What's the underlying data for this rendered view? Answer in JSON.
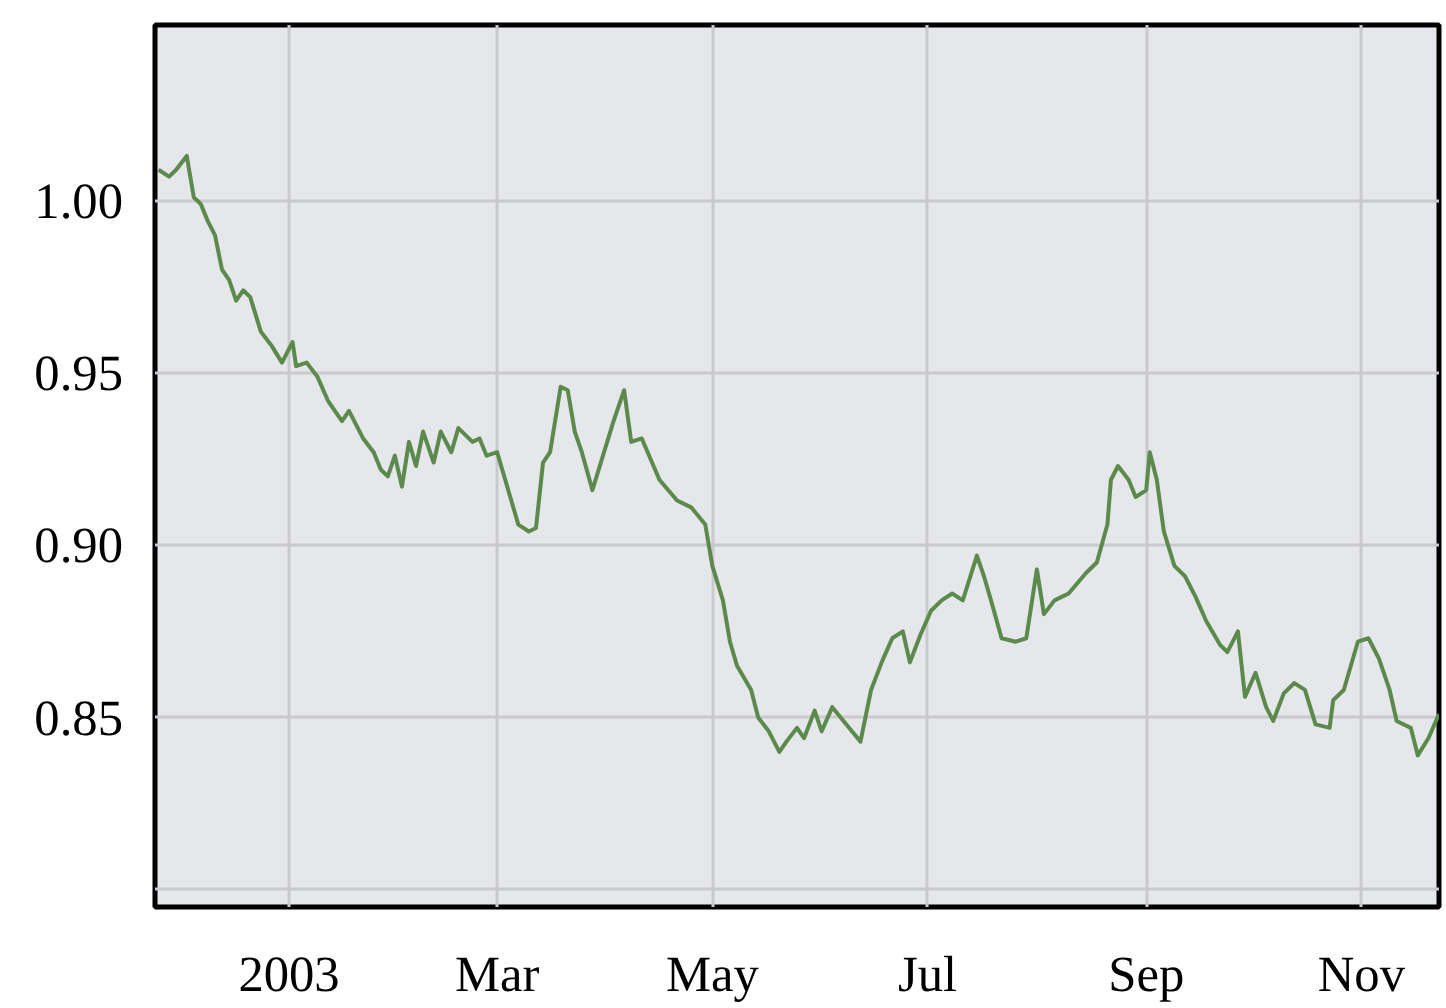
{
  "chart_data": {
    "type": "line",
    "xlim": [
      "2002-11-24",
      "2003-11-23"
    ],
    "ylim": [
      0.795,
      1.051
    ],
    "xticks": [
      {
        "value": "2003-01-01",
        "label": "2003"
      },
      {
        "value": "2003-03-01",
        "label": "Mar"
      },
      {
        "value": "2003-05-01",
        "label": "May"
      },
      {
        "value": "2003-07-01",
        "label": "Jul"
      },
      {
        "value": "2003-09-01",
        "label": "Sep"
      },
      {
        "value": "2003-11-01",
        "label": "Nov"
      }
    ],
    "yticks": [
      {
        "value": 0.8,
        "label": null
      },
      0.85,
      {
        "value": 0.9,
        "label": "0.90"
      },
      0.95,
      {
        "value": 1.0,
        "label": "1.00"
      }
    ],
    "grid": true,
    "marker": "none",
    "line_style": "solid",
    "x": [
      "2002-11-25",
      "2002-11-28",
      "2002-11-30",
      "2002-12-03",
      "2002-12-05",
      "2002-12-07",
      "2002-12-09",
      "2002-12-11",
      "2002-12-13",
      "2002-12-15",
      "2002-12-17",
      "2002-12-19",
      "2002-12-21",
      "2002-12-24",
      "2002-12-27",
      "2002-12-30",
      "2003-01-02",
      "2003-01-03",
      "2003-01-06",
      "2003-01-09",
      "2003-01-12",
      "2003-01-16",
      "2003-01-18",
      "2003-01-20",
      "2003-01-22",
      "2003-01-25",
      "2003-01-27",
      "2003-01-29",
      "2003-01-31",
      "2003-02-02",
      "2003-02-04",
      "2003-02-06",
      "2003-02-08",
      "2003-02-11",
      "2003-02-13",
      "2003-02-16",
      "2003-02-18",
      "2003-02-22",
      "2003-02-24",
      "2003-02-26",
      "2003-03-01",
      "2003-03-03",
      "2003-03-05",
      "2003-03-07",
      "2003-03-10",
      "2003-03-12",
      "2003-03-14",
      "2003-03-16",
      "2003-03-19",
      "2003-03-21",
      "2003-03-23",
      "2003-03-25",
      "2003-03-28",
      "2003-03-31",
      "2003-04-03",
      "2003-04-06",
      "2003-04-08",
      "2003-04-11",
      "2003-04-16",
      "2003-04-21",
      "2003-04-25",
      "2003-04-29",
      "2003-05-01",
      "2003-05-04",
      "2003-05-06",
      "2003-05-08",
      "2003-05-12",
      "2003-05-14",
      "2003-05-17",
      "2003-05-20",
      "2003-05-22",
      "2003-05-25",
      "2003-05-27",
      "2003-05-30",
      "2003-06-01",
      "2003-06-04",
      "2003-06-08",
      "2003-06-12",
      "2003-06-15",
      "2003-06-18",
      "2003-06-21",
      "2003-06-24",
      "2003-06-26",
      "2003-06-29",
      "2003-07-02",
      "2003-07-05",
      "2003-07-08",
      "2003-07-11",
      "2003-07-15",
      "2003-07-17",
      "2003-07-19",
      "2003-07-22",
      "2003-07-26",
      "2003-07-29",
      "2003-08-01",
      "2003-08-03",
      "2003-08-06",
      "2003-08-10",
      "2003-08-15",
      "2003-08-18",
      "2003-08-21",
      "2003-08-22",
      "2003-08-24",
      "2003-08-27",
      "2003-08-29",
      "2003-09-01",
      "2003-09-02",
      "2003-09-04",
      "2003-09-06",
      "2003-09-09",
      "2003-09-12",
      "2003-09-15",
      "2003-09-18",
      "2003-09-22",
      "2003-09-24",
      "2003-09-27",
      "2003-09-29",
      "2003-10-02",
      "2003-10-05",
      "2003-10-07",
      "2003-10-10",
      "2003-10-13",
      "2003-10-16",
      "2003-10-19",
      "2003-10-23",
      "2003-10-24",
      "2003-10-27",
      "2003-10-31",
      "2003-11-03",
      "2003-11-06",
      "2003-11-09",
      "2003-11-11",
      "2003-11-15",
      "2003-11-17",
      "2003-11-20",
      "2003-11-23"
    ],
    "series": [
      {
        "color": "#5b8a4c",
        "values": [
          1.009,
          1.007,
          1.009,
          1.013,
          1.001,
          0.999,
          0.994,
          0.99,
          0.98,
          0.977,
          0.971,
          0.974,
          0.972,
          0.962,
          0.958,
          0.953,
          0.959,
          0.952,
          0.953,
          0.949,
          0.942,
          0.936,
          0.939,
          0.935,
          0.931,
          0.927,
          0.922,
          0.92,
          0.926,
          0.917,
          0.93,
          0.923,
          0.933,
          0.924,
          0.933,
          0.927,
          0.934,
          0.93,
          0.931,
          0.926,
          0.927,
          0.92,
          0.913,
          0.906,
          0.904,
          0.905,
          0.924,
          0.927,
          0.946,
          0.945,
          0.933,
          0.927,
          0.916,
          0.926,
          0.936,
          0.945,
          0.93,
          0.931,
          0.919,
          0.913,
          0.911,
          0.906,
          0.894,
          0.884,
          0.872,
          0.865,
          0.858,
          0.85,
          0.846,
          0.84,
          0.843,
          0.847,
          0.844,
          0.852,
          0.846,
          0.853,
          0.848,
          0.843,
          0.858,
          0.866,
          0.873,
          0.875,
          0.866,
          0.874,
          0.881,
          0.884,
          0.886,
          0.884,
          0.897,
          0.891,
          0.884,
          0.873,
          0.872,
          0.873,
          0.893,
          0.88,
          0.884,
          0.886,
          0.892,
          0.895,
          0.906,
          0.919,
          0.923,
          0.919,
          0.914,
          0.916,
          0.927,
          0.919,
          0.904,
          0.894,
          0.891,
          0.885,
          0.878,
          0.871,
          0.869,
          0.875,
          0.856,
          0.863,
          0.853,
          0.849,
          0.857,
          0.86,
          0.858,
          0.848,
          0.847,
          0.855,
          0.858,
          0.872,
          0.873,
          0.867,
          0.858,
          0.849,
          0.847,
          0.839,
          0.844,
          0.851
        ]
      }
    ]
  }
}
